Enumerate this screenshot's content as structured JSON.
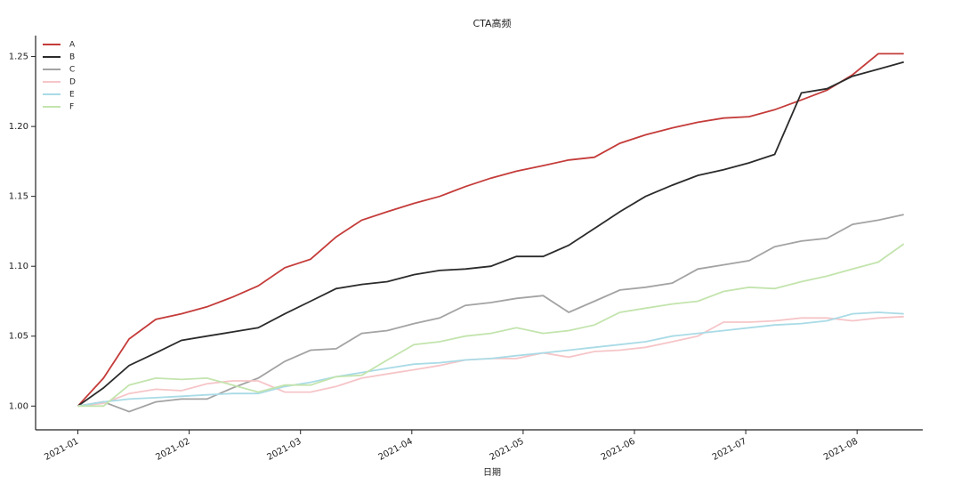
{
  "chart_data": {
    "type": "line",
    "title": "CTA高频",
    "x_label": "日期",
    "x": [
      0,
      0.23,
      0.46,
      0.7,
      0.93,
      1.16,
      1.39,
      1.62,
      1.86,
      2.09,
      2.32,
      2.55,
      2.78,
      3.02,
      3.25,
      3.48,
      3.71,
      3.94,
      4.18,
      4.41,
      4.64,
      4.87,
      5.1,
      5.34,
      5.57,
      5.8,
      6.03,
      6.26,
      6.5,
      6.73,
      6.96,
      7.19,
      7.42
    ],
    "series": [
      {
        "name": "A",
        "color": "#c43c3a",
        "values": [
          1.0,
          1.02,
          1.048,
          1.062,
          1.066,
          1.071,
          1.078,
          1.086,
          1.099,
          1.105,
          1.121,
          1.133,
          1.139,
          1.145,
          1.15,
          1.157,
          1.163,
          1.168,
          1.172,
          1.176,
          1.178,
          1.188,
          1.194,
          1.199,
          1.203,
          1.206,
          1.207,
          1.212,
          1.219,
          1.226,
          1.237,
          1.252,
          1.252
        ]
      },
      {
        "name": "B",
        "color": "#2b2b2b",
        "values": [
          1.0,
          1.013,
          1.029,
          1.038,
          1.047,
          1.05,
          1.053,
          1.056,
          1.066,
          1.075,
          1.084,
          1.087,
          1.089,
          1.094,
          1.097,
          1.098,
          1.1,
          1.107,
          1.107,
          1.115,
          1.127,
          1.139,
          1.15,
          1.158,
          1.165,
          1.169,
          1.174,
          1.18,
          1.224,
          1.227,
          1.236,
          1.241,
          1.246
        ]
      },
      {
        "name": "C",
        "color": "#a3a3a3",
        "values": [
          1.0,
          1.003,
          0.996,
          1.003,
          1.005,
          1.005,
          1.013,
          1.02,
          1.032,
          1.04,
          1.041,
          1.052,
          1.054,
          1.059,
          1.063,
          1.072,
          1.074,
          1.077,
          1.079,
          1.067,
          1.075,
          1.083,
          1.085,
          1.088,
          1.098,
          1.101,
          1.104,
          1.114,
          1.118,
          1.12,
          1.13,
          1.133,
          1.137
        ]
      },
      {
        "name": "D",
        "color": "#f6c5c8",
        "values": [
          1.0,
          1.002,
          1.009,
          1.012,
          1.011,
          1.016,
          1.018,
          1.018,
          1.01,
          1.01,
          1.014,
          1.02,
          1.023,
          1.026,
          1.029,
          1.033,
          1.034,
          1.034,
          1.038,
          1.035,
          1.039,
          1.04,
          1.042,
          1.046,
          1.05,
          1.06,
          1.06,
          1.061,
          1.063,
          1.063,
          1.061,
          1.063,
          1.064
        ]
      },
      {
        "name": "E",
        "color": "#a9dbe6",
        "values": [
          1.0,
          1.003,
          1.005,
          1.006,
          1.007,
          1.008,
          1.009,
          1.009,
          1.014,
          1.017,
          1.021,
          1.024,
          1.027,
          1.03,
          1.031,
          1.033,
          1.034,
          1.036,
          1.038,
          1.04,
          1.042,
          1.044,
          1.046,
          1.05,
          1.052,
          1.054,
          1.056,
          1.058,
          1.059,
          1.061,
          1.066,
          1.067,
          1.066
        ]
      },
      {
        "name": "F",
        "color": "#c3e4ad",
        "values": [
          1.0,
          1.0,
          1.015,
          1.02,
          1.019,
          1.02,
          1.015,
          1.01,
          1.015,
          1.015,
          1.021,
          1.022,
          1.033,
          1.044,
          1.046,
          1.05,
          1.052,
          1.056,
          1.052,
          1.054,
          1.058,
          1.067,
          1.07,
          1.073,
          1.075,
          1.082,
          1.085,
          1.084,
          1.089,
          1.093,
          1.098,
          1.103,
          1.116
        ]
      }
    ],
    "xlim": [
      -0.38,
      7.59
    ],
    "xticks": [
      {
        "value": 0,
        "label": "2021-01"
      },
      {
        "value": 1,
        "label": "2021-02"
      },
      {
        "value": 2,
        "label": "2021-03"
      },
      {
        "value": 3,
        "label": "2021-04"
      },
      {
        "value": 4,
        "label": "2021-05"
      },
      {
        "value": 5,
        "label": "2021-06"
      },
      {
        "value": 6,
        "label": "2021-07"
      },
      {
        "value": 7,
        "label": "2021-08"
      }
    ],
    "ylim": [
      0.983,
      1.265
    ],
    "yticks": [
      {
        "value": 1,
        "label": "1.00"
      },
      1.05,
      {
        "value": 1.1,
        "label": "1.10"
      },
      1.15,
      {
        "value": 1.2,
        "label": "1.20"
      },
      1.25
    ],
    "legend": "upper left"
  }
}
